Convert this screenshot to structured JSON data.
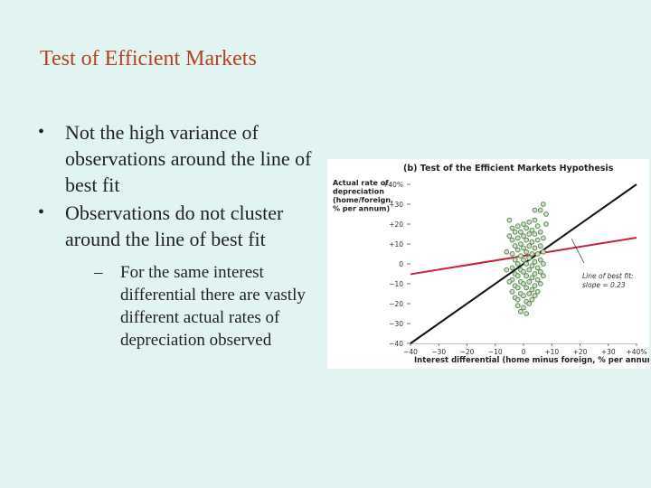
{
  "slide": {
    "title": "Test of Efficient Markets",
    "bullets": [
      {
        "text": "Not the high variance of observations around the line of best fit"
      },
      {
        "text": "Observations do not cluster around the line of best fit",
        "sub": [
          "For the same interest differential there are vastly different actual rates of depreciation observed"
        ]
      }
    ]
  },
  "colors": {
    "background": "#e2f4f1",
    "title": "#b3431f",
    "diagonal": "#111111",
    "fit_line": "#c8203c",
    "points": "#5e8a56"
  },
  "chart_data": {
    "type": "scatter",
    "title": "(b) Test of the Efficient Markets Hypothesis",
    "ylabel": [
      "Actual rate of",
      "depreciation",
      "(home/foreign,",
      "% per annum)"
    ],
    "xlabel": "Interest differential (home minus foreign, % per annum)",
    "xlim": [
      -40,
      40
    ],
    "ylim": [
      -40,
      40
    ],
    "x_ticks": [
      "−40",
      "−30",
      "−20",
      "−10",
      "0",
      "+10",
      "+20",
      "+30",
      "+40%"
    ],
    "y_ticks": [
      "+40%",
      "+30",
      "+20",
      "+10",
      "0",
      "−10",
      "−20",
      "−30",
      "−40"
    ],
    "lines": [
      {
        "role": "45-degree line",
        "points": [
          [
            -40,
            -40
          ],
          [
            40,
            40
          ]
        ]
      },
      {
        "role": "line of best fit",
        "points": [
          [
            -40,
            -5.2
          ],
          [
            40,
            13.2
          ]
        ]
      }
    ],
    "annotation": [
      "Line of best fit:",
      "slope = 0.23"
    ],
    "points": [
      [
        -4,
        18
      ],
      [
        -4,
        12
      ],
      [
        -4,
        5
      ],
      [
        -4,
        -2
      ],
      [
        -4,
        -8
      ],
      [
        -4,
        -14
      ],
      [
        -3,
        16
      ],
      [
        -3,
        9
      ],
      [
        -3,
        2
      ],
      [
        -3,
        -5
      ],
      [
        -3,
        -11
      ],
      [
        -3,
        -17
      ],
      [
        -2,
        19
      ],
      [
        -2,
        13
      ],
      [
        -2,
        7
      ],
      [
        -2,
        0
      ],
      [
        -2,
        -6
      ],
      [
        -2,
        -12
      ],
      [
        -2,
        -18
      ],
      [
        -2,
        -21
      ],
      [
        -1,
        16
      ],
      [
        -1,
        10
      ],
      [
        -1,
        4
      ],
      [
        -1,
        -3
      ],
      [
        -1,
        -9
      ],
      [
        -1,
        -15
      ],
      [
        -1,
        -24
      ],
      [
        0,
        20
      ],
      [
        0,
        14
      ],
      [
        0,
        8
      ],
      [
        0,
        2
      ],
      [
        0,
        -4
      ],
      [
        0,
        -10
      ],
      [
        0,
        -16
      ],
      [
        0,
        -22
      ],
      [
        1,
        18
      ],
      [
        1,
        12
      ],
      [
        1,
        6
      ],
      [
        1,
        0
      ],
      [
        1,
        -6
      ],
      [
        1,
        -12
      ],
      [
        1,
        -19
      ],
      [
        1,
        -25
      ],
      [
        2,
        21
      ],
      [
        2,
        15
      ],
      [
        2,
        9
      ],
      [
        2,
        3
      ],
      [
        2,
        -3
      ],
      [
        2,
        -9
      ],
      [
        2,
        -15
      ],
      [
        2,
        -20
      ],
      [
        3,
        17
      ],
      [
        3,
        11
      ],
      [
        3,
        5
      ],
      [
        3,
        -1
      ],
      [
        3,
        -7
      ],
      [
        3,
        -13
      ],
      [
        3,
        -18
      ],
      [
        4,
        22
      ],
      [
        4,
        15
      ],
      [
        4,
        8
      ],
      [
        4,
        1
      ],
      [
        4,
        -5
      ],
      [
        4,
        -11
      ],
      [
        4,
        -16
      ],
      [
        5,
        19
      ],
      [
        5,
        12
      ],
      [
        5,
        5
      ],
      [
        5,
        -2
      ],
      [
        5,
        -8
      ],
      [
        5,
        -14
      ],
      [
        6,
        16
      ],
      [
        6,
        9
      ],
      [
        6,
        2
      ],
      [
        6,
        -4
      ],
      [
        6,
        -10
      ],
      [
        7,
        13
      ],
      [
        7,
        6
      ],
      [
        7,
        0
      ],
      [
        7,
        -6
      ],
      [
        -6,
        6
      ],
      [
        -6,
        -3
      ],
      [
        -5,
        14
      ],
      [
        -5,
        -9
      ],
      [
        7,
        30
      ],
      [
        6,
        27
      ],
      [
        8,
        25
      ],
      [
        8,
        20
      ],
      [
        4,
        27
      ],
      [
        -5,
        22
      ]
    ]
  }
}
